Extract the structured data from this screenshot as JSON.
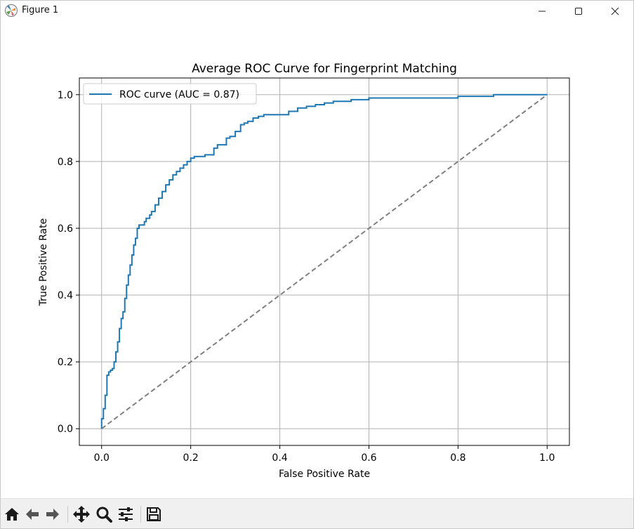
{
  "window": {
    "title": "Figure 1",
    "app_icon": "matplotlib-icon",
    "controls": [
      "minimize-icon",
      "maximize-icon",
      "close-icon"
    ]
  },
  "toolbar": {
    "tools": [
      "home-icon",
      "back-arrow-icon",
      "forward-arrow-icon",
      "pan-move-icon",
      "zoom-magnifier-icon",
      "configure-subplots-icon",
      "save-floppy-icon"
    ]
  },
  "chart_data": {
    "type": "line",
    "title": "Average ROC Curve for Fingerprint Matching",
    "xlabel": "False Positive Rate",
    "ylabel": "True Positive Rate",
    "xlim": [
      -0.05,
      1.05
    ],
    "ylim": [
      -0.05,
      1.05
    ],
    "xticks": [
      "0.0",
      "0.2",
      "0.4",
      "0.6",
      "0.8",
      "1.0"
    ],
    "yticks": [
      "0.0",
      "0.2",
      "0.4",
      "0.6",
      "0.8",
      "1.0"
    ],
    "grid": true,
    "legend": "upper left",
    "series": [
      {
        "name": "ROC curve (AUC = 0.87)",
        "color": "#1f77b4",
        "style": "solid",
        "x": [
          0.0,
          0.0,
          0.004,
          0.004,
          0.008,
          0.012,
          0.012,
          0.016,
          0.02,
          0.024,
          0.028,
          0.032,
          0.036,
          0.04,
          0.044,
          0.048,
          0.052,
          0.056,
          0.06,
          0.064,
          0.068,
          0.072,
          0.076,
          0.08,
          0.084,
          0.088,
          0.092,
          0.096,
          0.1,
          0.108,
          0.112,
          0.12,
          0.128,
          0.136,
          0.144,
          0.152,
          0.16,
          0.168,
          0.176,
          0.184,
          0.192,
          0.2,
          0.208,
          0.216,
          0.232,
          0.248,
          0.252,
          0.26,
          0.268,
          0.28,
          0.288,
          0.3,
          0.312,
          0.32,
          0.328,
          0.34,
          0.352,
          0.364,
          0.384,
          0.4,
          0.42,
          0.44,
          0.46,
          0.48,
          0.5,
          0.52,
          0.56,
          0.6,
          0.68,
          0.8,
          0.88,
          1.0
        ],
        "y": [
          0.0,
          0.03,
          0.03,
          0.06,
          0.1,
          0.12,
          0.16,
          0.17,
          0.175,
          0.18,
          0.2,
          0.23,
          0.26,
          0.3,
          0.33,
          0.35,
          0.39,
          0.43,
          0.46,
          0.49,
          0.52,
          0.55,
          0.57,
          0.6,
          0.61,
          0.61,
          0.61,
          0.62,
          0.63,
          0.64,
          0.65,
          0.67,
          0.69,
          0.71,
          0.73,
          0.745,
          0.76,
          0.77,
          0.78,
          0.79,
          0.8,
          0.81,
          0.815,
          0.815,
          0.82,
          0.82,
          0.84,
          0.85,
          0.85,
          0.87,
          0.875,
          0.89,
          0.91,
          0.915,
          0.92,
          0.93,
          0.935,
          0.94,
          0.94,
          0.94,
          0.95,
          0.96,
          0.965,
          0.97,
          0.975,
          0.98,
          0.985,
          0.99,
          0.99,
          0.995,
          1.0,
          1.0
        ]
      },
      {
        "color": "#808080",
        "style": "dashed",
        "x": [
          0.0,
          1.0
        ],
        "y": [
          0.0,
          1.0
        ]
      }
    ]
  }
}
